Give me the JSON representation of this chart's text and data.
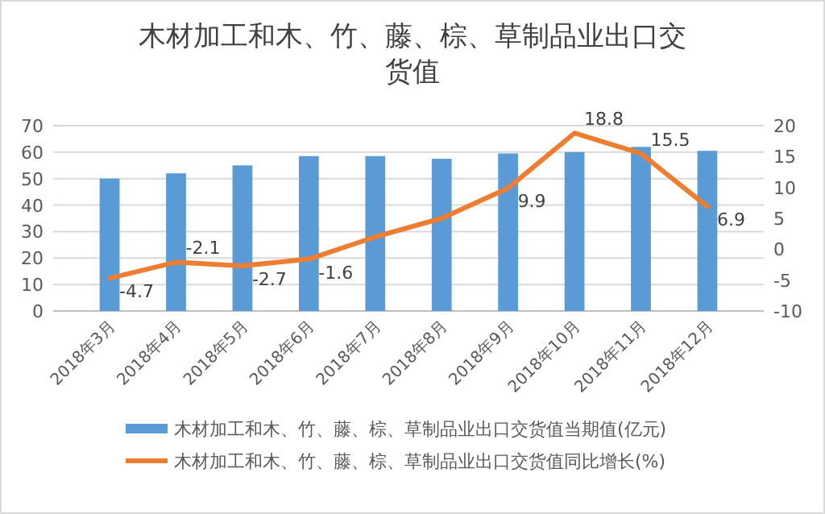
{
  "chart_data": {
    "type": "bar",
    "title": "木材加工和木、竹、藤、棕、草制品业出口交货值",
    "categories": [
      "2018年3月",
      "2018年4月",
      "2018年5月",
      "2018年6月",
      "2018年7月",
      "2018年8月",
      "2018年9月",
      "2018年10月",
      "2018年11月",
      "2018年12月"
    ],
    "series": [
      {
        "name": "木材加工和木、竹、藤、棕、草制品业出口交货值当期值(亿元)",
        "color": "#5b9bd5",
        "values": [
          50,
          52,
          55,
          58.5,
          58.5,
          57.5,
          59.5,
          60,
          62,
          60.5
        ]
      },
      {
        "name": "木材加工和木、竹、藤、棕、草制品业出口交货值同比增长(%)",
        "type": "line",
        "axis": "y2",
        "color": "#ed7d31",
        "values": [
          -4.7,
          -2.1,
          -2.7,
          -1.6,
          2,
          5,
          9.9,
          18.8,
          15.5,
          6.9
        ],
        "value_labels": [
          "-4.7",
          "-2.1",
          "-2.7",
          "-1.6",
          null,
          null,
          "9.9",
          "18.8",
          "15.5",
          "6.9"
        ]
      }
    ],
    "ylim": [
      0,
      70
    ],
    "yticks": [
      0,
      10,
      20,
      30,
      40,
      50,
      60,
      70
    ],
    "y2lim": [
      -10,
      20
    ],
    "y2ticks": [
      -10,
      -5,
      0,
      5,
      10,
      15,
      20
    ],
    "grid": "y",
    "legend": "bottom"
  }
}
